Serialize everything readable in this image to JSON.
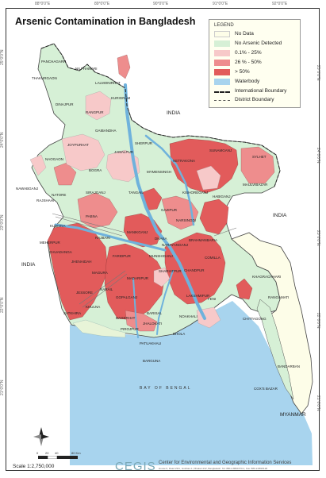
{
  "map": {
    "title": "Arsenic Contamination in Bangladesh",
    "top_ticks": [
      "88°0'0\"E",
      "89°0'0\"E",
      "90°0'0\"E",
      "91°0'0\"E",
      "92°0'0\"E"
    ],
    "side_ticks": [
      "25°0'0\"N",
      "24°0'0\"N",
      "23°0'0\"N",
      "22°0'0\"N",
      "21°0'0\"N"
    ],
    "sea_label": "BAY OF BENGAL",
    "countries": {
      "india_n": "INDIA",
      "india_e": "INDIA",
      "india_w": "INDIA",
      "myanmar": "MYANMAR"
    },
    "colors": {
      "no_data": "#fdfde8",
      "none_detected": "#d6f0d6",
      "low": "#f7c9c9",
      "mid": "#ee8d8d",
      "high": "#e25b5b",
      "water": "#a8d4ee"
    }
  },
  "legend": {
    "title": "LEGEND",
    "items": [
      {
        "label": "No Data",
        "color": "#fdfde8",
        "kind": "fill"
      },
      {
        "label": "No Arsenic Detected",
        "color": "#d6f0d6",
        "kind": "fill"
      },
      {
        "label": "0.1% - 25%",
        "color": "#f7c9c9",
        "kind": "fill"
      },
      {
        "label": "26 % - 50%",
        "color": "#ee8d8d",
        "kind": "fill"
      },
      {
        "label": "> 50%",
        "color": "#e25b5b",
        "kind": "fill"
      },
      {
        "label": "Waterbody",
        "color": "#a8d4ee",
        "kind": "fill"
      },
      {
        "label": "International Boundary",
        "color": "#222222",
        "kind": "dash-bold"
      },
      {
        "label": "District Boundary",
        "color": "#555555",
        "kind": "dash"
      }
    ]
  },
  "districts": [
    "PANCHAGARH",
    "THAKURGAON",
    "NILPHAMARI",
    "LALMONIRHAT",
    "KURIGRAM",
    "DINAJPUR",
    "RANGPUR",
    "GAIBANDHA",
    "JOYPURHAT",
    "NAOGAON",
    "BOGRA",
    "JAMALPUR",
    "SHERPUR",
    "NETRAKONA",
    "SUNAMGANJ",
    "SYLHET",
    "NAWABGANJ",
    "RAJSHAHI",
    "NATORE",
    "SIRAJGANJ",
    "TANGAIL",
    "MYMENSINGH",
    "KISHOREGANJ",
    "HABIGANJ",
    "MAULVIBAZAR",
    "PABNA",
    "GAZIPUR",
    "NARSINGDI",
    "KUSHTIA",
    "MANIKGANJ",
    "DHAKA",
    "BRAHMANBARIA",
    "RAJBARI",
    "NARAYANGANJ",
    "MEHERPUR",
    "CHUADANGA",
    "JHENAIDAH",
    "FARIDPUR",
    "MUNSHIGANJ",
    "COMILLA",
    "MAGURA",
    "MADARIPUR",
    "SHARIATPUR",
    "CHANDPUR",
    "JESSORE",
    "NARAIL",
    "GOPALGANJ",
    "LAKSHMIPUR",
    "FENI",
    "KHAGRACHHARI",
    "SATKHIRA",
    "KHULNA",
    "BAGERHAT",
    "BARISAL",
    "NOAKHALI",
    "RANGAMATI",
    "PIROJPUR",
    "JHALOKATI",
    "PATUAKHALI",
    "BHOLA",
    "CHITTAGONG",
    "BARGUNA",
    "BANDARBAN",
    "COX'S BAZAR"
  ],
  "footer": {
    "scale": "Scale 1:2,750,000",
    "scale_ticks": [
      "0",
      "20",
      "40",
      "80 Km"
    ],
    "logo": "CEGIS",
    "org": "Center for Environmental and Geographic Information Services",
    "address": "House 6, Road 23/C, Gulshan-1, Dhaka-1212, Bangladesh. Tel: 880-2-8821570-1, Fax: 880-2-8823128"
  }
}
